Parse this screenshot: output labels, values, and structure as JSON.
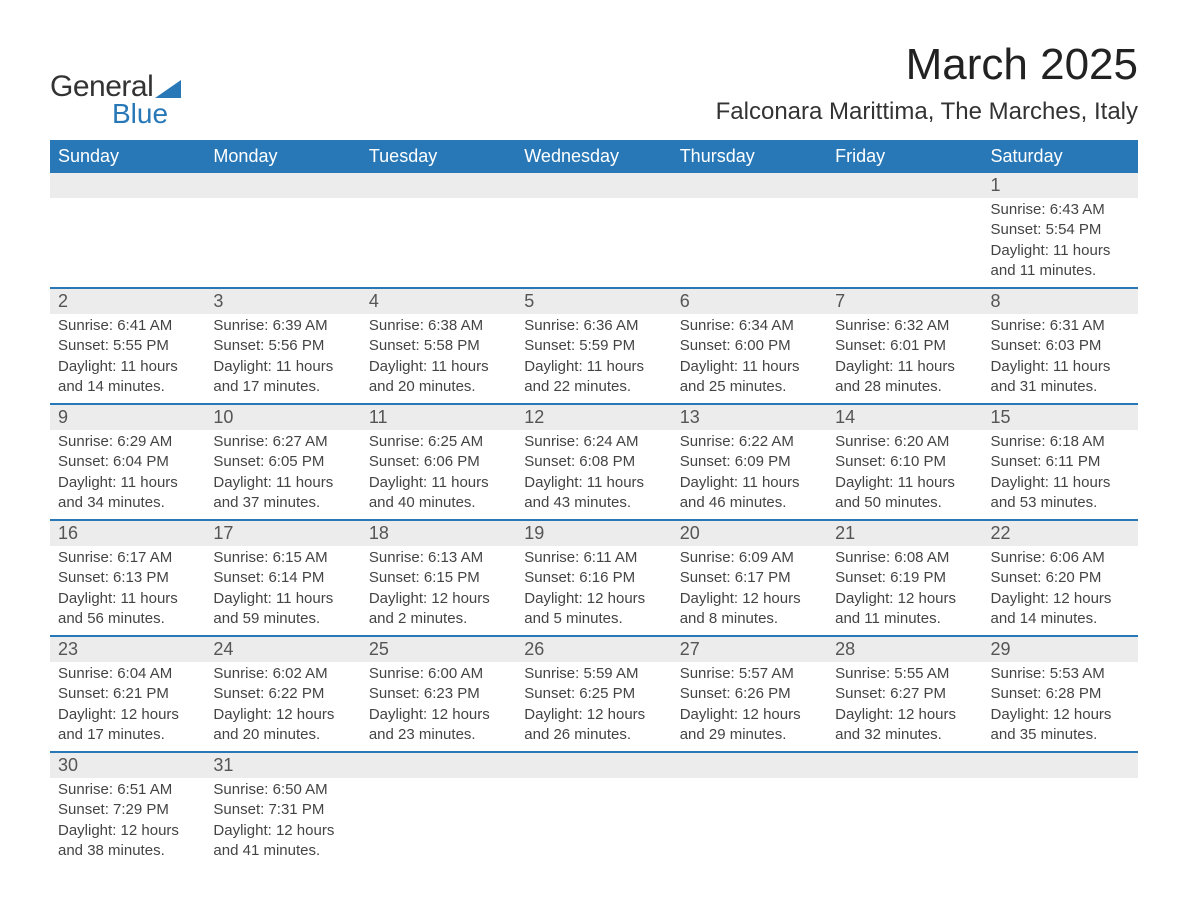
{
  "logo": {
    "general": "General",
    "blue": "Blue"
  },
  "title": "March 2025",
  "location": "Falconara Marittima, The Marches, Italy",
  "colors": {
    "header_bg": "#2878b8",
    "header_text": "#ffffff",
    "daynum_bg": "#ececec",
    "row_border": "#2878b8",
    "body_text": "#444444",
    "title_text": "#222222"
  },
  "typography": {
    "title_fontsize": 44,
    "location_fontsize": 24,
    "dayheader_fontsize": 18,
    "daynum_fontsize": 18,
    "info_fontsize": 15
  },
  "day_headers": [
    "Sunday",
    "Monday",
    "Tuesday",
    "Wednesday",
    "Thursday",
    "Friday",
    "Saturday"
  ],
  "labels": {
    "sunrise": "Sunrise: ",
    "sunset": "Sunset: ",
    "daylight": "Daylight: "
  },
  "weeks": [
    [
      null,
      null,
      null,
      null,
      null,
      null,
      {
        "n": "1",
        "sr": "6:43 AM",
        "ss": "5:54 PM",
        "dl": "11 hours and 11 minutes."
      }
    ],
    [
      {
        "n": "2",
        "sr": "6:41 AM",
        "ss": "5:55 PM",
        "dl": "11 hours and 14 minutes."
      },
      {
        "n": "3",
        "sr": "6:39 AM",
        "ss": "5:56 PM",
        "dl": "11 hours and 17 minutes."
      },
      {
        "n": "4",
        "sr": "6:38 AM",
        "ss": "5:58 PM",
        "dl": "11 hours and 20 minutes."
      },
      {
        "n": "5",
        "sr": "6:36 AM",
        "ss": "5:59 PM",
        "dl": "11 hours and 22 minutes."
      },
      {
        "n": "6",
        "sr": "6:34 AM",
        "ss": "6:00 PM",
        "dl": "11 hours and 25 minutes."
      },
      {
        "n": "7",
        "sr": "6:32 AM",
        "ss": "6:01 PM",
        "dl": "11 hours and 28 minutes."
      },
      {
        "n": "8",
        "sr": "6:31 AM",
        "ss": "6:03 PM",
        "dl": "11 hours and 31 minutes."
      }
    ],
    [
      {
        "n": "9",
        "sr": "6:29 AM",
        "ss": "6:04 PM",
        "dl": "11 hours and 34 minutes."
      },
      {
        "n": "10",
        "sr": "6:27 AM",
        "ss": "6:05 PM",
        "dl": "11 hours and 37 minutes."
      },
      {
        "n": "11",
        "sr": "6:25 AM",
        "ss": "6:06 PM",
        "dl": "11 hours and 40 minutes."
      },
      {
        "n": "12",
        "sr": "6:24 AM",
        "ss": "6:08 PM",
        "dl": "11 hours and 43 minutes."
      },
      {
        "n": "13",
        "sr": "6:22 AM",
        "ss": "6:09 PM",
        "dl": "11 hours and 46 minutes."
      },
      {
        "n": "14",
        "sr": "6:20 AM",
        "ss": "6:10 PM",
        "dl": "11 hours and 50 minutes."
      },
      {
        "n": "15",
        "sr": "6:18 AM",
        "ss": "6:11 PM",
        "dl": "11 hours and 53 minutes."
      }
    ],
    [
      {
        "n": "16",
        "sr": "6:17 AM",
        "ss": "6:13 PM",
        "dl": "11 hours and 56 minutes."
      },
      {
        "n": "17",
        "sr": "6:15 AM",
        "ss": "6:14 PM",
        "dl": "11 hours and 59 minutes."
      },
      {
        "n": "18",
        "sr": "6:13 AM",
        "ss": "6:15 PM",
        "dl": "12 hours and 2 minutes."
      },
      {
        "n": "19",
        "sr": "6:11 AM",
        "ss": "6:16 PM",
        "dl": "12 hours and 5 minutes."
      },
      {
        "n": "20",
        "sr": "6:09 AM",
        "ss": "6:17 PM",
        "dl": "12 hours and 8 minutes."
      },
      {
        "n": "21",
        "sr": "6:08 AM",
        "ss": "6:19 PM",
        "dl": "12 hours and 11 minutes."
      },
      {
        "n": "22",
        "sr": "6:06 AM",
        "ss": "6:20 PM",
        "dl": "12 hours and 14 minutes."
      }
    ],
    [
      {
        "n": "23",
        "sr": "6:04 AM",
        "ss": "6:21 PM",
        "dl": "12 hours and 17 minutes."
      },
      {
        "n": "24",
        "sr": "6:02 AM",
        "ss": "6:22 PM",
        "dl": "12 hours and 20 minutes."
      },
      {
        "n": "25",
        "sr": "6:00 AM",
        "ss": "6:23 PM",
        "dl": "12 hours and 23 minutes."
      },
      {
        "n": "26",
        "sr": "5:59 AM",
        "ss": "6:25 PM",
        "dl": "12 hours and 26 minutes."
      },
      {
        "n": "27",
        "sr": "5:57 AM",
        "ss": "6:26 PM",
        "dl": "12 hours and 29 minutes."
      },
      {
        "n": "28",
        "sr": "5:55 AM",
        "ss": "6:27 PM",
        "dl": "12 hours and 32 minutes."
      },
      {
        "n": "29",
        "sr": "5:53 AM",
        "ss": "6:28 PM",
        "dl": "12 hours and 35 minutes."
      }
    ],
    [
      {
        "n": "30",
        "sr": "6:51 AM",
        "ss": "7:29 PM",
        "dl": "12 hours and 38 minutes."
      },
      {
        "n": "31",
        "sr": "6:50 AM",
        "ss": "7:31 PM",
        "dl": "12 hours and 41 minutes."
      },
      null,
      null,
      null,
      null,
      null
    ]
  ]
}
